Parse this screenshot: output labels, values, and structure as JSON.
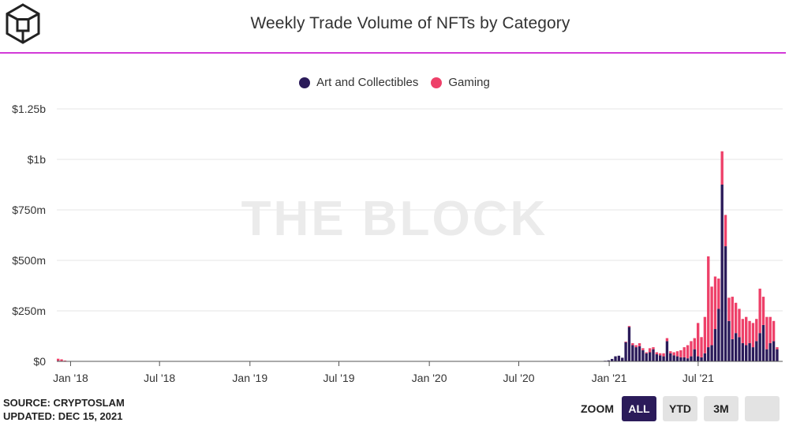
{
  "title": "Weekly Trade Volume of NFTs by Category",
  "watermark": "THE BLOCK",
  "source": "SOURCE: CRYPTOSLAM",
  "updated": "UPDATED: DEC 15, 2021",
  "zoom": {
    "label": "ZOOM",
    "buttons": [
      "ALL",
      "YTD",
      "3M",
      ""
    ],
    "active": "ALL"
  },
  "colors": {
    "art": "#2b1b5a",
    "gaming": "#ee4069",
    "accent_rule": "#d23ad8"
  },
  "chart_data": {
    "type": "bar",
    "stacked": true,
    "title": "Weekly Trade Volume of NFTs by Category",
    "legend_position": "top-center",
    "grid": true,
    "y_ticks": [
      "$0",
      "$250m",
      "$500m",
      "$750m",
      "$1b",
      "$1.25b"
    ],
    "y_tick_values": [
      0,
      250,
      500,
      750,
      1000,
      1250
    ],
    "ylim": [
      0,
      1250
    ],
    "y_unit": "$ millions",
    "x_ticks": [
      "Jan '18",
      "Jul '18",
      "Jan '19",
      "Jul '19",
      "Jan '20",
      "Jul '20",
      "Jan '21",
      "Jul '21"
    ],
    "x_tick_dates": [
      "2018-01-01",
      "2018-07-01",
      "2019-01-01",
      "2019-07-01",
      "2020-01-01",
      "2020-07-01",
      "2021-01-01",
      "2021-07-01"
    ],
    "xlim": [
      "2017-12-04",
      "2021-12-13"
    ],
    "series": [
      {
        "name": "Art and Collectibles",
        "color": "#2b1b5a",
        "points": [
          [
            "2017-12-04",
            3
          ],
          [
            "2017-12-11",
            2
          ],
          [
            "2017-12-18",
            1
          ],
          [
            "2020-12-21",
            3
          ],
          [
            "2020-12-28",
            5
          ],
          [
            "2021-01-04",
            12
          ],
          [
            "2021-01-11",
            25
          ],
          [
            "2021-01-18",
            28
          ],
          [
            "2021-01-25",
            18
          ],
          [
            "2021-02-01",
            95
          ],
          [
            "2021-02-08",
            170
          ],
          [
            "2021-02-15",
            80
          ],
          [
            "2021-02-22",
            70
          ],
          [
            "2021-03-01",
            75
          ],
          [
            "2021-03-08",
            55
          ],
          [
            "2021-03-15",
            40
          ],
          [
            "2021-03-22",
            45
          ],
          [
            "2021-03-29",
            60
          ],
          [
            "2021-04-05",
            35
          ],
          [
            "2021-04-12",
            30
          ],
          [
            "2021-04-19",
            25
          ],
          [
            "2021-04-26",
            100
          ],
          [
            "2021-05-03",
            40
          ],
          [
            "2021-05-10",
            30
          ],
          [
            "2021-05-17",
            25
          ],
          [
            "2021-05-24",
            20
          ],
          [
            "2021-05-31",
            20
          ],
          [
            "2021-06-07",
            15
          ],
          [
            "2021-06-14",
            25
          ],
          [
            "2021-06-21",
            60
          ],
          [
            "2021-06-28",
            25
          ],
          [
            "2021-07-05",
            20
          ],
          [
            "2021-07-12",
            40
          ],
          [
            "2021-07-19",
            70
          ],
          [
            "2021-07-26",
            80
          ],
          [
            "2021-08-02",
            160
          ],
          [
            "2021-08-09",
            260
          ],
          [
            "2021-08-16",
            875
          ],
          [
            "2021-08-23",
            570
          ],
          [
            "2021-08-30",
            200
          ],
          [
            "2021-09-06",
            110
          ],
          [
            "2021-09-13",
            140
          ],
          [
            "2021-09-20",
            120
          ],
          [
            "2021-09-27",
            90
          ],
          [
            "2021-10-04",
            80
          ],
          [
            "2021-10-11",
            90
          ],
          [
            "2021-10-18",
            70
          ],
          [
            "2021-10-25",
            100
          ],
          [
            "2021-11-01",
            140
          ],
          [
            "2021-11-08",
            180
          ],
          [
            "2021-11-15",
            60
          ],
          [
            "2021-11-22",
            90
          ],
          [
            "2021-11-29",
            100
          ],
          [
            "2021-12-06",
            60
          ]
        ]
      },
      {
        "name": "Gaming",
        "color": "#ee4069",
        "points": [
          [
            "2017-12-04",
            10
          ],
          [
            "2017-12-11",
            8
          ],
          [
            "2017-12-18",
            3
          ],
          [
            "2021-02-01",
            3
          ],
          [
            "2021-02-08",
            5
          ],
          [
            "2021-02-15",
            10
          ],
          [
            "2021-02-22",
            10
          ],
          [
            "2021-03-01",
            15
          ],
          [
            "2021-03-08",
            10
          ],
          [
            "2021-03-15",
            5
          ],
          [
            "2021-03-22",
            20
          ],
          [
            "2021-03-29",
            10
          ],
          [
            "2021-04-05",
            10
          ],
          [
            "2021-04-12",
            10
          ],
          [
            "2021-04-19",
            15
          ],
          [
            "2021-04-26",
            15
          ],
          [
            "2021-05-03",
            10
          ],
          [
            "2021-05-10",
            15
          ],
          [
            "2021-05-17",
            25
          ],
          [
            "2021-05-24",
            35
          ],
          [
            "2021-05-31",
            50
          ],
          [
            "2021-06-07",
            65
          ],
          [
            "2021-06-14",
            75
          ],
          [
            "2021-06-21",
            55
          ],
          [
            "2021-06-28",
            165
          ],
          [
            "2021-07-05",
            100
          ],
          [
            "2021-07-12",
            180
          ],
          [
            "2021-07-19",
            450
          ],
          [
            "2021-07-26",
            290
          ],
          [
            "2021-08-02",
            260
          ],
          [
            "2021-08-09",
            150
          ],
          [
            "2021-08-16",
            165
          ],
          [
            "2021-08-23",
            155
          ],
          [
            "2021-08-30",
            115
          ],
          [
            "2021-09-06",
            210
          ],
          [
            "2021-09-13",
            150
          ],
          [
            "2021-09-20",
            140
          ],
          [
            "2021-09-27",
            120
          ],
          [
            "2021-10-04",
            140
          ],
          [
            "2021-10-11",
            110
          ],
          [
            "2021-10-18",
            120
          ],
          [
            "2021-10-25",
            110
          ],
          [
            "2021-11-01",
            220
          ],
          [
            "2021-11-08",
            140
          ],
          [
            "2021-11-15",
            160
          ],
          [
            "2021-11-22",
            130
          ],
          [
            "2021-11-29",
            100
          ],
          [
            "2021-12-06",
            10
          ]
        ]
      }
    ]
  }
}
